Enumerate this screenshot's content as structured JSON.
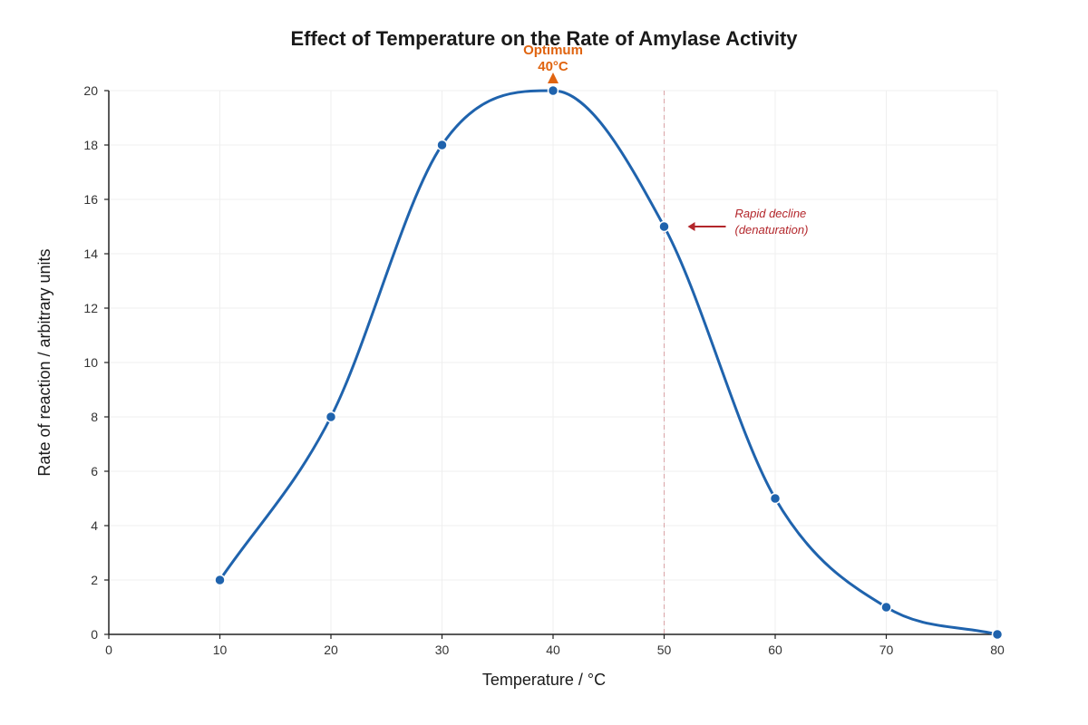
{
  "chart_data": {
    "type": "line",
    "title": "Effect of Temperature on the Rate of Amylase Activity",
    "xlabel": "Temperature / °C",
    "ylabel": "Rate of reaction / arbitrary units",
    "xlim": [
      0,
      80
    ],
    "ylim": [
      0,
      20
    ],
    "x_ticks": [
      0,
      10,
      20,
      30,
      40,
      50,
      60,
      70,
      80
    ],
    "y_ticks": [
      0,
      2,
      4,
      6,
      8,
      10,
      12,
      14,
      16,
      18,
      20
    ],
    "grid": true,
    "legend": "none",
    "smooth": true,
    "series": [
      {
        "x": [
          10,
          20,
          30,
          40,
          50,
          60,
          70,
          80
        ],
        "y": [
          2,
          8,
          18,
          20,
          15,
          5,
          1,
          0
        ],
        "color": "#1f63ad"
      }
    ],
    "annotations": {
      "optimum": {
        "line1": "Optimum",
        "line2": "40°C",
        "x": 40,
        "y": 20,
        "color": "#e06410"
      },
      "decline": {
        "line1": "Rapid decline",
        "line2": "(denaturation)",
        "x": 50,
        "y": 15,
        "color": "#b3262b"
      }
    }
  }
}
